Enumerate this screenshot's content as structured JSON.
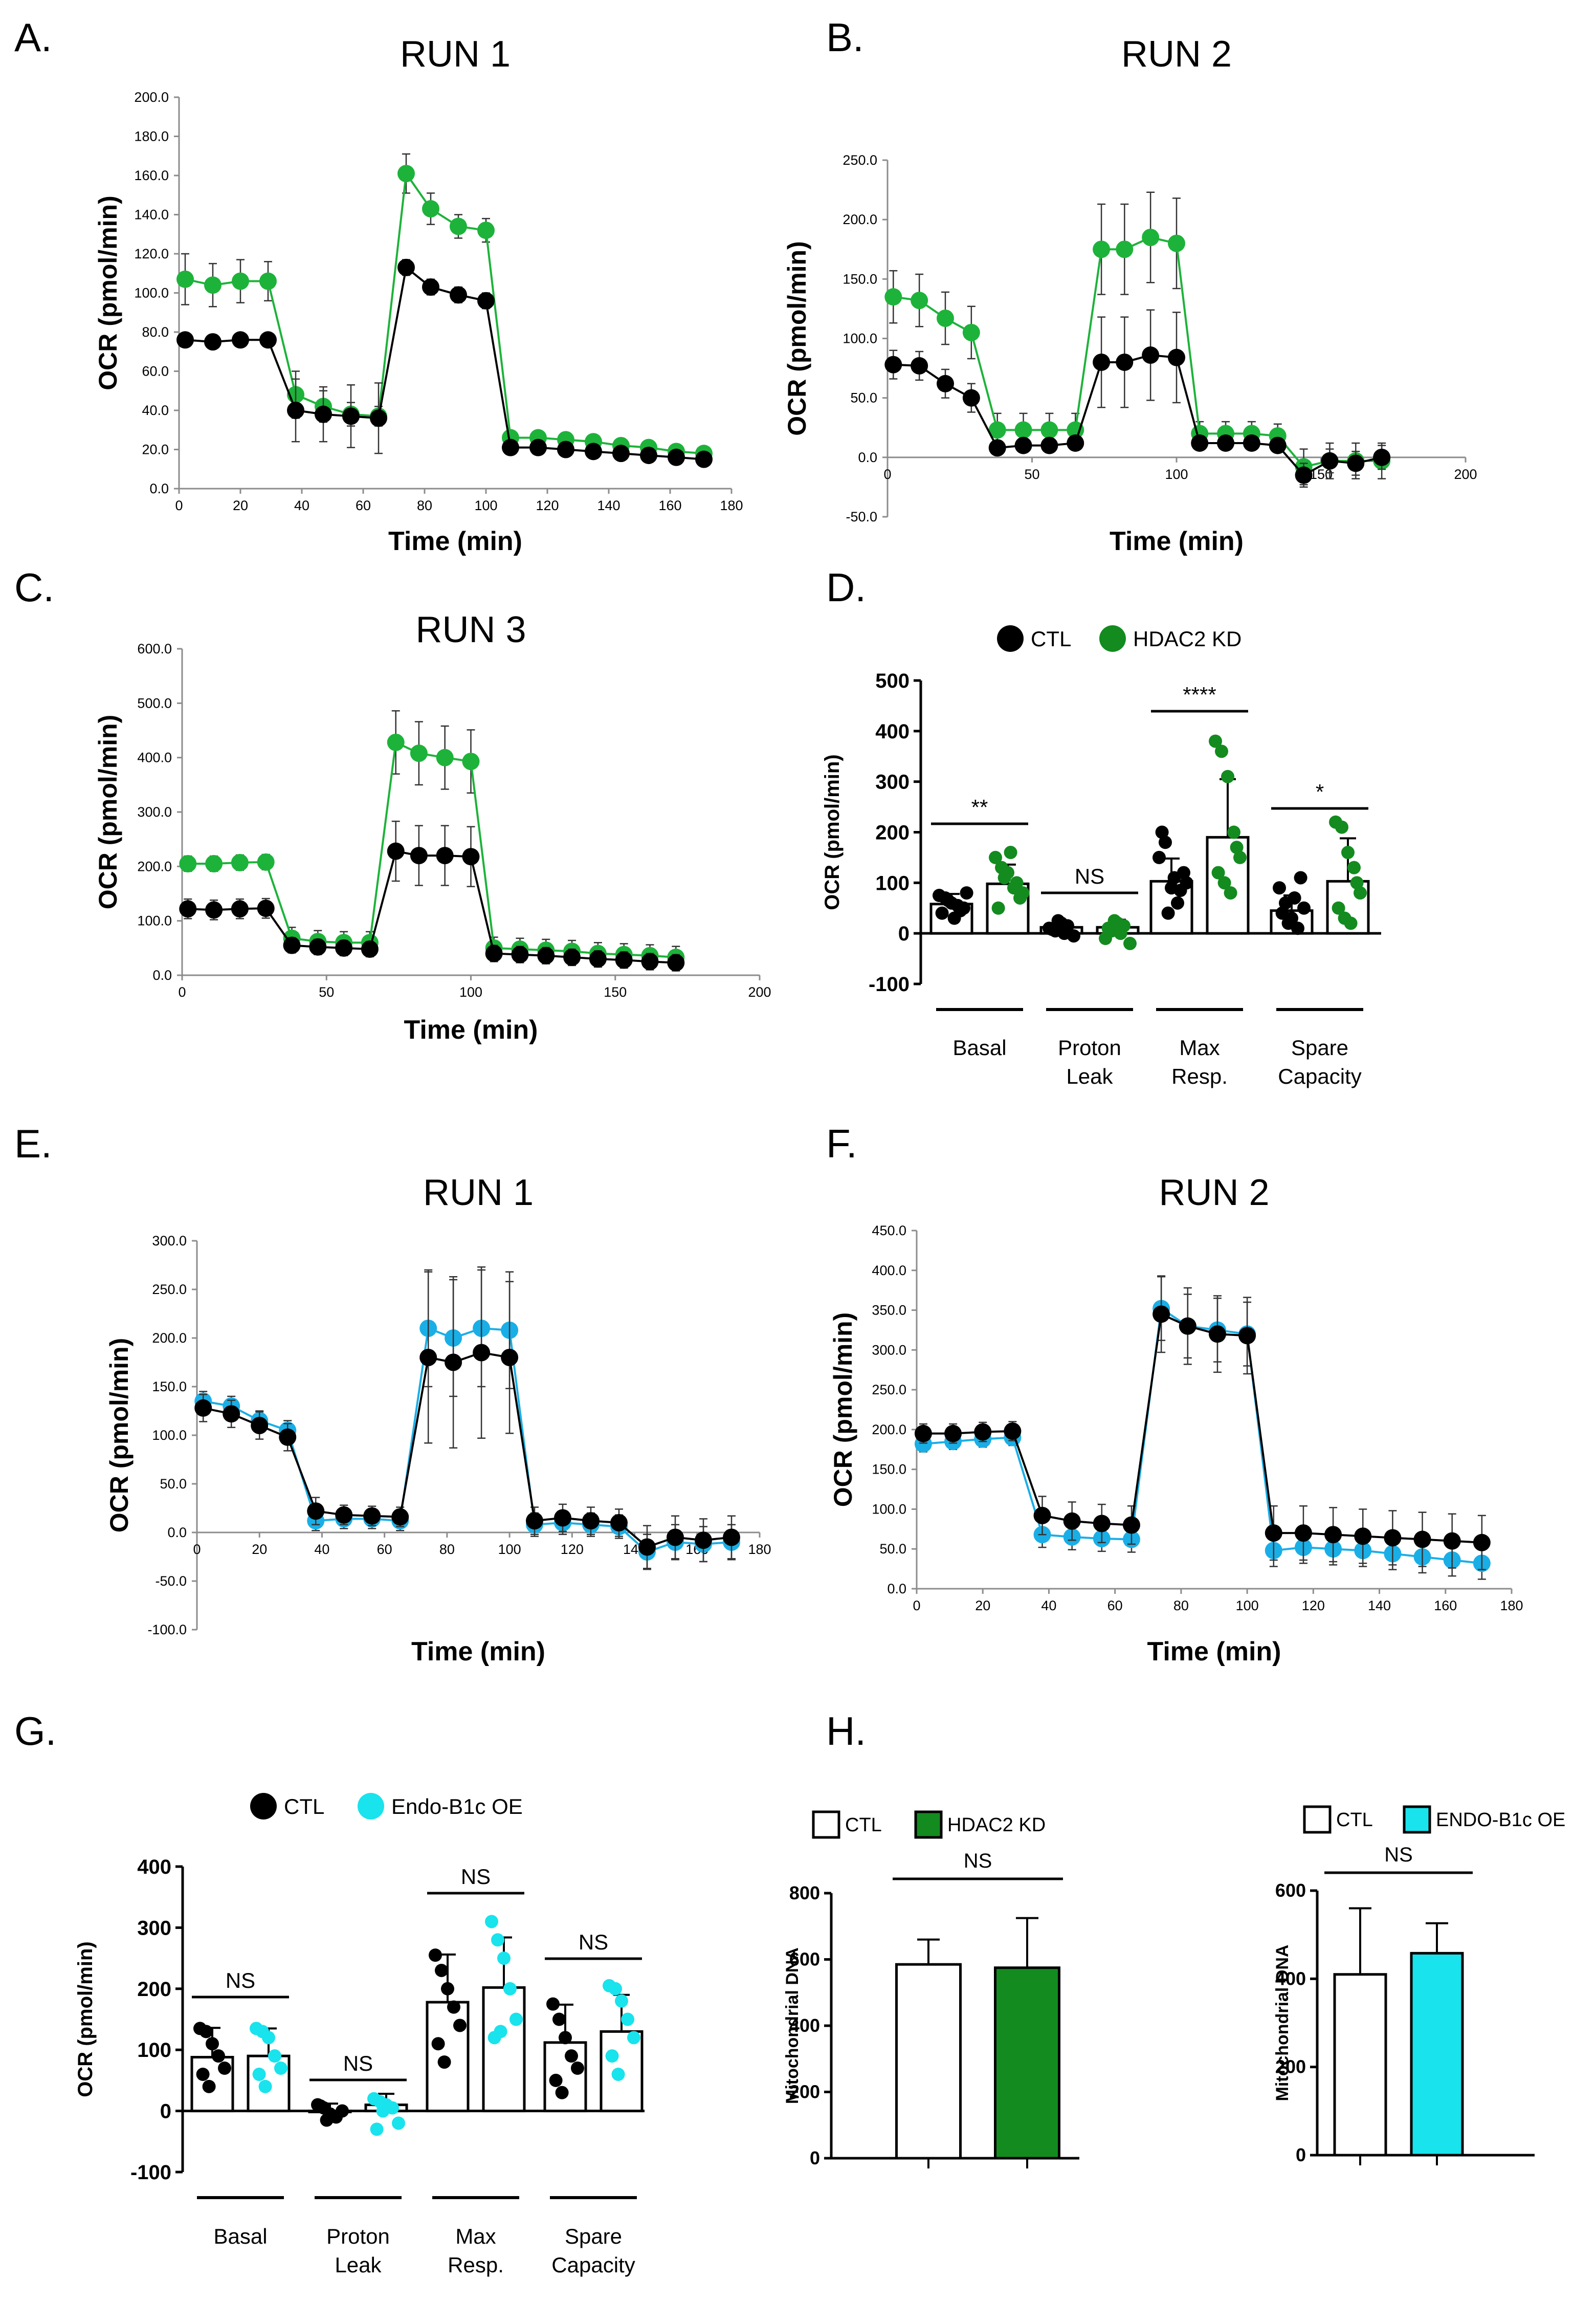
{
  "figure": {
    "panels": [
      "A.",
      "B.",
      "C.",
      "D.",
      "E.",
      "F.",
      "G.",
      "H."
    ]
  },
  "colors": {
    "ctl": "#000000",
    "hdac2": "#1db33a",
    "hdac2_dark": "#138b1f",
    "endo": "#1aaee6",
    "endo_bright": "#19e3ec"
  },
  "chart_data": [
    {
      "panel": "A.",
      "type": "line",
      "title": "RUN 1",
      "xlabel": "Time (min)",
      "ylabel": "OCR (pmol/min)",
      "xlim": [
        0,
        180
      ],
      "ylim": [
        0,
        200
      ],
      "xticks": [
        "0",
        "20",
        "40",
        "60",
        "80",
        "100",
        "120",
        "140",
        "160",
        "180"
      ],
      "yticks": [
        "0.0",
        "20.0",
        "40.0",
        "60.0",
        "80.0",
        "100.0",
        "120.0",
        "140.0",
        "160.0",
        "180.0",
        "200.0"
      ],
      "x": [
        2,
        11,
        20,
        29,
        38,
        47,
        56,
        65,
        74,
        82,
        91,
        100,
        108,
        117,
        126,
        135,
        144,
        153,
        162,
        171
      ],
      "series": [
        {
          "name": "CTL",
          "color": "#000000",
          "values": [
            76,
            75,
            76,
            76,
            40,
            38,
            37,
            36,
            113,
            103,
            99,
            96,
            21,
            21,
            20,
            19,
            18,
            17,
            16,
            15
          ],
          "errors": [
            2,
            2,
            2,
            2,
            16,
            14,
            16,
            18,
            4,
            4,
            4,
            4,
            2,
            2,
            2,
            2,
            2,
            2,
            2,
            2
          ]
        },
        {
          "name": "HDAC2 KD",
          "color": "#1db33a",
          "values": [
            107,
            104,
            106,
            106,
            48,
            42,
            38,
            37,
            161,
            143,
            134,
            132,
            26,
            26,
            25,
            24,
            22,
            21,
            19,
            18
          ],
          "errors": [
            13,
            11,
            11,
            10,
            12,
            8,
            6,
            5,
            10,
            8,
            6,
            6,
            2,
            2,
            2,
            2,
            2,
            2,
            2,
            2
          ]
        }
      ]
    },
    {
      "panel": "B.",
      "type": "line",
      "title": "RUN 2",
      "xlabel": "Time (min)",
      "ylabel": "OCR (pmol/min)",
      "xlim": [
        0,
        200
      ],
      "ylim": [
        -50,
        250
      ],
      "xticks": [
        "0",
        "50",
        "100",
        "150",
        "200"
      ],
      "yticks": [
        "-50.0",
        "0.0",
        "50.0",
        "100.0",
        "150.0",
        "200.0",
        "250.0"
      ],
      "x": [
        2,
        11,
        20,
        29,
        38,
        47,
        56,
        65,
        74,
        82,
        91,
        100,
        108,
        117,
        126,
        135,
        144,
        153,
        162,
        171
      ],
      "series": [
        {
          "name": "CTL",
          "color": "#000000",
          "values": [
            78,
            77,
            62,
            50,
            8,
            10,
            10,
            12,
            80,
            80,
            86,
            84,
            12,
            12,
            12,
            10,
            -15,
            -3,
            -5,
            0
          ],
          "errors": [
            12,
            12,
            12,
            12,
            6,
            6,
            6,
            6,
            38,
            38,
            38,
            38,
            6,
            6,
            6,
            6,
            10,
            10,
            10,
            10
          ]
        },
        {
          "name": "HDAC2 KD",
          "color": "#1db33a",
          "values": [
            135,
            132,
            117,
            105,
            23,
            23,
            23,
            23,
            175,
            175,
            185,
            180,
            20,
            20,
            20,
            18,
            -8,
            -3,
            -3,
            -3
          ],
          "errors": [
            22,
            22,
            22,
            22,
            14,
            14,
            14,
            14,
            38,
            38,
            38,
            38,
            10,
            10,
            10,
            10,
            15,
            15,
            15,
            15
          ]
        }
      ]
    },
    {
      "panel": "C.",
      "type": "line",
      "title": "RUN 3",
      "xlabel": "Time (min)",
      "ylabel": "OCR (pmol/min)",
      "xlim": [
        0,
        200
      ],
      "ylim": [
        0,
        600
      ],
      "xticks": [
        "0",
        "50",
        "100",
        "150",
        "200"
      ],
      "yticks": [
        "0.0",
        "100.0",
        "200.0",
        "300.0",
        "400.0",
        "500.0",
        "600.0"
      ],
      "x": [
        2,
        11,
        20,
        29,
        38,
        47,
        56,
        65,
        74,
        82,
        91,
        100,
        108,
        117,
        126,
        135,
        144,
        153,
        162,
        171
      ],
      "series": [
        {
          "name": "CTL",
          "color": "#000000",
          "values": [
            122,
            120,
            122,
            123,
            55,
            52,
            50,
            48,
            228,
            220,
            220,
            218,
            40,
            38,
            36,
            33,
            30,
            28,
            25,
            23
          ],
          "errors": [
            18,
            18,
            18,
            18,
            14,
            14,
            14,
            14,
            55,
            55,
            55,
            55,
            15,
            15,
            15,
            15,
            15,
            15,
            15,
            15
          ]
        },
        {
          "name": "HDAC2 KD",
          "color": "#1db33a",
          "values": [
            205,
            205,
            207,
            208,
            68,
            62,
            60,
            60,
            428,
            408,
            400,
            393,
            50,
            48,
            46,
            44,
            40,
            38,
            36,
            33
          ],
          "errors": [
            14,
            14,
            14,
            14,
            20,
            20,
            20,
            20,
            58,
            58,
            58,
            58,
            20,
            20,
            20,
            20,
            20,
            20,
            20,
            20
          ]
        }
      ]
    },
    {
      "panel": "D.",
      "type": "bar",
      "ylabel": "OCR (pmol/min)",
      "ylim": [
        -100,
        500
      ],
      "yticks": [
        "-100",
        "0",
        "100",
        "200",
        "300",
        "400",
        "500"
      ],
      "legend": [
        "CTL",
        "HDAC2 KD"
      ],
      "categories": [
        "Basal",
        "Proton Leak",
        "Max Resp.",
        "Spare Capacity"
      ],
      "significance": [
        "**",
        "NS",
        "****",
        "*"
      ],
      "series": [
        {
          "name": "CTL",
          "color": "#000000",
          "values": [
            58,
            12,
            103,
            45
          ],
          "errors": [
            20,
            10,
            45,
            30
          ],
          "points": [
            [
              75,
              70,
              60,
              55,
              50,
              40,
              65,
              30,
              45,
              80
            ],
            [
              10,
              5,
              20,
              15,
              -5,
              8,
              25,
              0
            ],
            [
              150,
              180,
              90,
              60,
              120,
              200,
              40,
              110,
              85,
              100
            ],
            [
              90,
              60,
              30,
              10,
              50,
              40,
              20,
              70,
              110
            ]
          ]
        },
        {
          "name": "HDAC2 KD",
          "color": "#138b1f",
          "values": [
            98,
            12,
            190,
            103
          ],
          "errors": [
            38,
            15,
            115,
            85
          ],
          "points": [
            [
              150,
              130,
              120,
              90,
              70,
              50,
              110,
              160,
              100,
              80
            ],
            [
              -10,
              5,
              20,
              15,
              -20,
              10,
              25,
              0
            ],
            [
              380,
              360,
              310,
              200,
              150,
              120,
              100,
              80,
              170
            ],
            [
              220,
              210,
              160,
              130,
              80,
              50,
              30,
              20,
              100
            ]
          ]
        }
      ]
    },
    {
      "panel": "E.",
      "type": "line",
      "title": "RUN 1",
      "xlabel": "Time (min)",
      "ylabel": "OCR (pmol/min)",
      "xlim": [
        0,
        180
      ],
      "ylim": [
        -100,
        300
      ],
      "xticks": [
        "0",
        "20",
        "40",
        "60",
        "80",
        "100",
        "120",
        "140",
        "160",
        "180"
      ],
      "yticks": [
        "-100.0",
        "-50.0",
        "0.0",
        "50.0",
        "100.0",
        "150.0",
        "200.0",
        "250.0",
        "300.0"
      ],
      "x": [
        2,
        11,
        20,
        29,
        38,
        47,
        56,
        65,
        74,
        82,
        91,
        100,
        108,
        117,
        126,
        135,
        144,
        153,
        162,
        171
      ],
      "series": [
        {
          "name": "CTL",
          "color": "#000000",
          "values": [
            128,
            122,
            110,
            98,
            22,
            18,
            17,
            16,
            180,
            175,
            185,
            180,
            12,
            15,
            12,
            10,
            -15,
            -5,
            -8,
            -5
          ],
          "errors": [
            14,
            14,
            14,
            14,
            14,
            10,
            10,
            10,
            88,
            88,
            88,
            78,
            14,
            14,
            14,
            14,
            22,
            22,
            22,
            22
          ]
        },
        {
          "name": "Endo-B1c OE",
          "color": "#1aaee6",
          "values": [
            135,
            130,
            115,
            105,
            12,
            14,
            14,
            12,
            210,
            200,
            210,
            208,
            8,
            10,
            8,
            6,
            -20,
            -10,
            -12,
            -10
          ],
          "errors": [
            10,
            10,
            10,
            10,
            10,
            10,
            10,
            10,
            60,
            60,
            60,
            60,
            12,
            12,
            12,
            12,
            18,
            18,
            18,
            18
          ]
        }
      ]
    },
    {
      "panel": "F.",
      "type": "line",
      "title": "RUN 2",
      "xlabel": "Time (min)",
      "ylabel": "OCR (pmol/min)",
      "xlim": [
        0,
        180
      ],
      "ylim": [
        0,
        450
      ],
      "xticks": [
        "0",
        "20",
        "40",
        "60",
        "80",
        "100",
        "120",
        "140",
        "160",
        "180"
      ],
      "yticks": [
        "0.0",
        "50.0",
        "100.0",
        "150.0",
        "200.0",
        "250.0",
        "300.0",
        "350.0",
        "400.0",
        "450.0"
      ],
      "x": [
        2,
        11,
        20,
        29,
        38,
        47,
        56,
        65,
        74,
        82,
        91,
        100,
        108,
        117,
        126,
        135,
        144,
        153,
        162,
        171
      ],
      "series": [
        {
          "name": "CTL",
          "color": "#000000",
          "values": [
            195,
            195,
            197,
            198,
            92,
            85,
            82,
            80,
            345,
            330,
            320,
            318,
            70,
            70,
            68,
            66,
            64,
            62,
            60,
            58
          ],
          "errors": [
            12,
            12,
            12,
            12,
            24,
            24,
            24,
            24,
            48,
            48,
            48,
            48,
            34,
            34,
            34,
            34,
            34,
            34,
            34,
            34
          ]
        },
        {
          "name": "Endo-B1c OE",
          "color": "#1aaee6",
          "values": [
            182,
            185,
            188,
            190,
            68,
            65,
            63,
            62,
            352,
            330,
            325,
            320,
            48,
            52,
            50,
            48,
            44,
            40,
            36,
            32
          ],
          "errors": [
            10,
            10,
            10,
            10,
            16,
            16,
            16,
            16,
            40,
            40,
            40,
            40,
            20,
            20,
            20,
            20,
            20,
            20,
            20,
            20
          ]
        }
      ]
    },
    {
      "panel": "G.",
      "type": "bar",
      "ylabel": "OCR (pmol/min)",
      "ylim": [
        -100,
        400
      ],
      "yticks": [
        "-100",
        "0",
        "100",
        "200",
        "300",
        "400"
      ],
      "legend": [
        "CTL",
        "Endo-B1c OE"
      ],
      "categories": [
        "Basal",
        "Proton Leak",
        "Max Resp.",
        "Spare Capacity"
      ],
      "significance": [
        "NS",
        "NS",
        "NS",
        "NS"
      ],
      "series": [
        {
          "name": "CTL",
          "color": "#000000",
          "values": [
            88,
            0,
            178,
            112
          ],
          "errors": [
            48,
            12,
            78,
            62
          ],
          "points": [
            [
              135,
              130,
              110,
              90,
              70,
              60,
              40
            ],
            [
              10,
              5,
              -5,
              -10,
              0,
              8,
              -15
            ],
            [
              255,
              230,
              200,
              170,
              140,
              110,
              80
            ],
            [
              175,
              150,
              120,
              90,
              70,
              50,
              30
            ]
          ]
        },
        {
          "name": "Endo-B1c OE",
          "color": "#19e3ec",
          "values": [
            90,
            10,
            202,
            130
          ],
          "errors": [
            45,
            18,
            82,
            60
          ],
          "points": [
            [
              135,
              130,
              120,
              90,
              70,
              60,
              40
            ],
            [
              20,
              15,
              10,
              5,
              -20,
              -30,
              0
            ],
            [
              310,
              280,
              250,
              200,
              150,
              120,
              130
            ],
            [
              205,
              200,
              180,
              150,
              120,
              90,
              60
            ]
          ]
        }
      ]
    },
    {
      "panel": "H.",
      "type": "bar",
      "ylabel": "Mitochondrial DNA",
      "ylim": [
        0,
        800
      ],
      "yticks": [
        "0",
        "200",
        "400",
        "600",
        "800"
      ],
      "legend": [
        "CTL",
        "HDAC2 KD"
      ],
      "categories": [
        "CTL",
        "HDAC2 KD"
      ],
      "significance": [
        "NS"
      ],
      "values": [
        585,
        575
      ],
      "errors": [
        75,
        150
      ],
      "fills": [
        "#ffffff",
        "#138b1f"
      ]
    },
    {
      "panel": "H.",
      "type": "bar",
      "ylabel": "Mitochondrial DNA",
      "ylim": [
        0,
        600
      ],
      "yticks": [
        "0",
        "200",
        "400",
        "600"
      ],
      "legend": [
        "CTL",
        "ENDO-B1c OE"
      ],
      "categories": [
        "CTL",
        "ENDO-B1c OE"
      ],
      "significance": [
        "NS"
      ],
      "values": [
        410,
        458
      ],
      "errors": [
        150,
        68
      ],
      "fills": [
        "#ffffff",
        "#19e3ec"
      ]
    }
  ]
}
